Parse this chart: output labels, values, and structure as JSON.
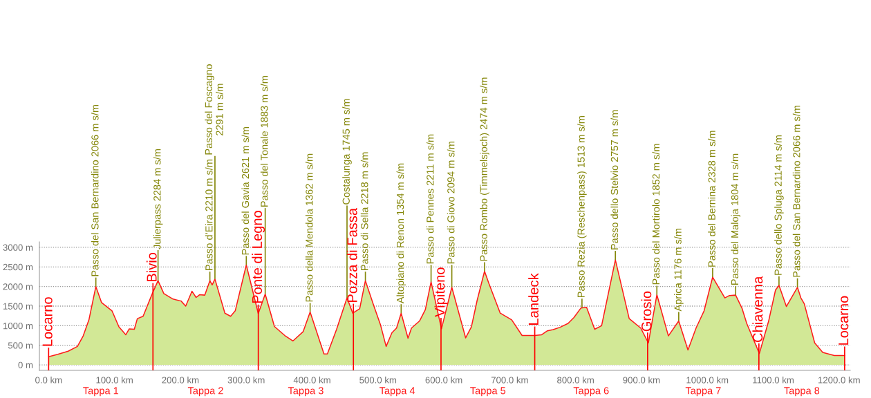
{
  "chart_data": {
    "type": "area",
    "x": [
      0,
      14.0,
      29.7,
      43.7,
      52.5,
      61.2,
      71.7,
      80.4,
      96.2,
      106.7,
      117.2,
      122.4,
      130.1,
      134.7,
      143.4,
      157.4,
      166.1,
      174.9,
      188.9,
      201.1,
      208.1,
      217.6,
      223.9,
      229.1,
      237.1,
      244.8,
      248.3,
      252.5,
      267.6,
      276.3,
      283.3,
      300.1,
      318.3,
      328.8,
      342.8,
      358.5,
      370.8,
      386.5,
      397.0,
      418.0,
      423.2,
      437.2,
      453.0,
      461.7,
      472.2,
      480.9,
      493.2,
      503.7,
      512.4,
      521.2,
      528.2,
      535.2,
      545.6,
      550.9,
      563.1,
      571.9,
      580.6,
      596.4,
      612.1,
      633.1,
      641.8,
      650.6,
      661.8,
      668.1,
      685.6,
      703.0,
      718.8,
      725.8,
      738.0,
      748.5,
      757.3,
      766.0,
      776.5,
      788.7,
      797.5,
      808.0,
      816.7,
      829.0,
      839.5,
      860.4,
      881.4,
      898.9,
      910.5,
      923.4,
      940.9,
      956.6,
      970.6,
      982.9,
      995.1,
      1008.1,
      1026.6,
      1033.6,
      1043.0,
      1052.8,
      1059.8,
      1079.0,
      1093.1,
      1103.5,
      1108.8,
      1120.0,
      1136.8,
      1142.0,
      1147.2,
      1163.0,
      1175.2,
      1192.7,
      1208.5
    ],
    "series": [
      {
        "color": "#d2e896",
        "values": [
          210,
          270,
          350,
          470,
          740,
          1150,
          2000,
          1590,
          1380,
          970,
          770,
          920,
          910,
          1180,
          1240,
          1820,
          2150,
          1820,
          1680,
          1630,
          1500,
          1880,
          1720,
          1790,
          1780,
          2150,
          2040,
          2190,
          1320,
          1240,
          1380,
          2550,
          1310,
          1810,
          980,
          750,
          610,
          850,
          1350,
          280,
          280,
          910,
          1710,
          1320,
          1430,
          2150,
          1530,
          1030,
          470,
          820,
          940,
          1320,
          680,
          940,
          1120,
          1410,
          2120,
          920,
          1980,
          690,
          970,
          1650,
          2390,
          2090,
          1320,
          1150,
          750,
          750,
          750,
          770,
          870,
          900,
          960,
          1060,
          1210,
          1450,
          1470,
          910,
          1000,
          2680,
          1180,
          940,
          560,
          1790,
          740,
          1120,
          380,
          940,
          1380,
          2240,
          1710,
          1770,
          1780,
          1440,
          1060,
          290,
          1120,
          1910,
          2030,
          1490,
          1980,
          1710,
          1560,
          560,
          320,
          240,
          240
        ]
      },
      {
        "type": "line",
        "color": "#ff1a1a",
        "values": [
          210,
          270,
          350,
          470,
          740,
          1150,
          2000,
          1590,
          1380,
          970,
          770,
          920,
          910,
          1180,
          1240,
          1820,
          2150,
          1820,
          1680,
          1630,
          1500,
          1880,
          1720,
          1790,
          1780,
          2150,
          2040,
          2190,
          1320,
          1240,
          1380,
          2550,
          1310,
          1810,
          980,
          750,
          610,
          850,
          1350,
          280,
          280,
          910,
          1710,
          1320,
          1430,
          2150,
          1530,
          1030,
          470,
          820,
          940,
          1320,
          680,
          940,
          1120,
          1410,
          2120,
          920,
          1980,
          690,
          970,
          1650,
          2390,
          2090,
          1320,
          1150,
          750,
          750,
          750,
          770,
          870,
          900,
          960,
          1060,
          1210,
          1450,
          1470,
          910,
          1000,
          2680,
          1180,
          940,
          560,
          1790,
          740,
          1120,
          380,
          940,
          1380,
          2240,
          1710,
          1770,
          1780,
          1440,
          1060,
          290,
          1120,
          1910,
          2030,
          1490,
          1980,
          1710,
          1560,
          560,
          320,
          240,
          240
        ]
      }
    ],
    "xlim": [
      -14,
      1217
    ],
    "ylim": [
      -140,
      3140
    ],
    "xticks": [
      {
        "value": 0,
        "label": "0.0 km"
      },
      {
        "value": 100,
        "label": "100.0 km"
      },
      {
        "value": 200,
        "label": "200.0 km"
      },
      {
        "value": 300,
        "label": "300.0 km"
      },
      {
        "value": 400,
        "label": "400.0 km"
      },
      {
        "value": 500,
        "label": "500.0 km"
      },
      {
        "value": 600,
        "label": "600.0 km"
      },
      {
        "value": 700,
        "label": "700.0 km"
      },
      {
        "value": 800,
        "label": "800.0 km"
      },
      {
        "value": 900,
        "label": "900.0 km"
      },
      {
        "value": 1000,
        "label": "1000.0 km"
      },
      {
        "value": 1100,
        "label": "1100.0 km"
      },
      {
        "value": 1200,
        "label": "1200.0 km"
      }
    ],
    "yticks": [
      {
        "value": 0,
        "label": "0 m"
      },
      {
        "value": 500,
        "label": "500 m"
      },
      {
        "value": 1000,
        "label": "1000 m"
      },
      {
        "value": 1500,
        "label": "1500 m"
      },
      {
        "value": 2000,
        "label": "2000 m"
      },
      {
        "value": 2500,
        "label": "2500 m"
      },
      {
        "value": 3000,
        "label": "3000 m"
      }
    ],
    "grid": "y",
    "ref_lines": [
      {
        "axis": "x",
        "value": 0,
        "label": "Locarno",
        "color": "#ff0000"
      },
      {
        "axis": "x",
        "value": 158.4,
        "label": "Bivio",
        "color": "#ff0000"
      },
      {
        "axis": "x",
        "value": 318.3,
        "label": "Ponte di Legno",
        "color": "#ff0000"
      },
      {
        "axis": "x",
        "value": 462.7,
        "label": "Pozza di Fassa",
        "color": "#ff0000"
      },
      {
        "axis": "x",
        "value": 595.7,
        "label": "Vipiteno",
        "color": "#ff0000"
      },
      {
        "axis": "x",
        "value": 738.0,
        "label": "Landeck",
        "color": "#ff0000"
      },
      {
        "axis": "x",
        "value": 909.4,
        "label": "Grosio",
        "color": "#ff0000"
      },
      {
        "axis": "x",
        "value": 1078.3,
        "label": "Chiavenna",
        "color": "#ff0000"
      },
      {
        "axis": "x",
        "value": 1208.5,
        "label": "Locarno",
        "color": "#ff0000"
      }
    ],
    "annotations": [
      {
        "text": "Passo del San Bernardino 2066 m s/m",
        "x": 71.7,
        "y": 2000
      },
      {
        "text": "Julierpass 2284 m s/m",
        "x": 166.1,
        "y": 2150
      },
      {
        "text": "Passo d’Eira 2210 m s/m",
        "x": 244.8,
        "y": 2150
      },
      {
        "text": "Passo del Foscagno\n2291 m s/m",
        "x": 252.5,
        "y": 2190
      },
      {
        "text": "Passo del Gavia 2621 m s/m",
        "x": 300.1,
        "y": 2550
      },
      {
        "text": "Passo del Tonale 1883 m s/m",
        "x": 328.8,
        "y": 1810
      },
      {
        "text": "Passo della Mendola 1362 m s/m",
        "x": 397.0,
        "y": 1350
      },
      {
        "text": "Costalunga 1745 m s/m",
        "x": 453.0,
        "y": 1710
      },
      {
        "text": "Passo di Sella 2218 m s/m",
        "x": 480.9,
        "y": 2150
      },
      {
        "text": "Altopiano di Renon 1354 m s/m",
        "x": 535.2,
        "y": 1320
      },
      {
        "text": "Passo di Pennes 2211 m s/m",
        "x": 580.6,
        "y": 2120
      },
      {
        "text": "Passo di Giovo 2094 m s/m",
        "x": 612.1,
        "y": 1980
      },
      {
        "text": "Passo Rombo (Timmelsjoch) 2474 m s/m",
        "x": 661.8,
        "y": 2390
      },
      {
        "text": "Passo Rezia (Reschenpass) 1513 m s/m",
        "x": 809.7,
        "y": 1460
      },
      {
        "text": "Passo dello Stelvio 2757 m s/m",
        "x": 860.4,
        "y": 2680
      },
      {
        "text": "Passo del Mortirolo 1852 m s/m",
        "x": 923.4,
        "y": 1790
      },
      {
        "text": "Aprica 1176 m s/m",
        "x": 956.6,
        "y": 1120
      },
      {
        "text": "Passo del Bernina 2328 m s/m",
        "x": 1008.1,
        "y": 2240
      },
      {
        "text": "Passo del Maloja 1804 m s/m",
        "x": 1043.0,
        "y": 1780
      },
      {
        "text": "Passo dello Spluga 2114 m s/m",
        "x": 1108.8,
        "y": 2030
      },
      {
        "text": "Passo del San Bernardino 2066 m s/m",
        "x": 1136.8,
        "y": 1980
      },
      "Tappa 1",
      "Tappa 2",
      "Tappa 3",
      "Tappa 4",
      "Tappa 5",
      "Tappa 6",
      "Tappa 7",
      "Tappa 8"
    ]
  }
}
